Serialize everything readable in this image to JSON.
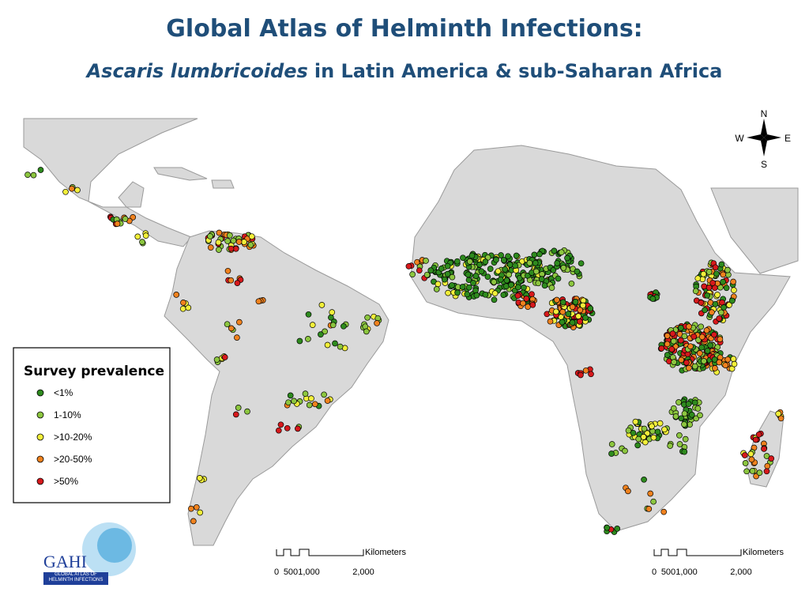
{
  "header": {
    "title": "Global Atlas of Helminth Infections:",
    "subtitle_species": "Ascaris lumbricoides",
    "subtitle_rest": "in Latin America & sub-Saharan Africa"
  },
  "compass": {
    "north": "N",
    "south": "S",
    "east": "E",
    "west": "W"
  },
  "legend": {
    "title": "Survey prevalence",
    "items": [
      {
        "label": "<1%",
        "color": "#2e8b1e"
      },
      {
        "label": "1-10%",
        "color": "#8cc63f"
      },
      {
        "label": ">10-20%",
        "color": "#f2ef3a"
      },
      {
        "label": ">20-50%",
        "color": "#f0821e"
      },
      {
        "label": ">50%",
        "color": "#d7191c"
      }
    ]
  },
  "scale_bars": [
    {
      "unit": "Kilometers",
      "labels": [
        "0",
        "500",
        "1,000",
        "2,000"
      ]
    },
    {
      "unit": "Kilometers",
      "labels": [
        "0",
        "500",
        "1,000",
        "2,000"
      ]
    }
  ],
  "logo": {
    "name": "GAHI",
    "tagline": "GLOBAL ATLAS OF HELMINTH INFECTIONS"
  }
}
